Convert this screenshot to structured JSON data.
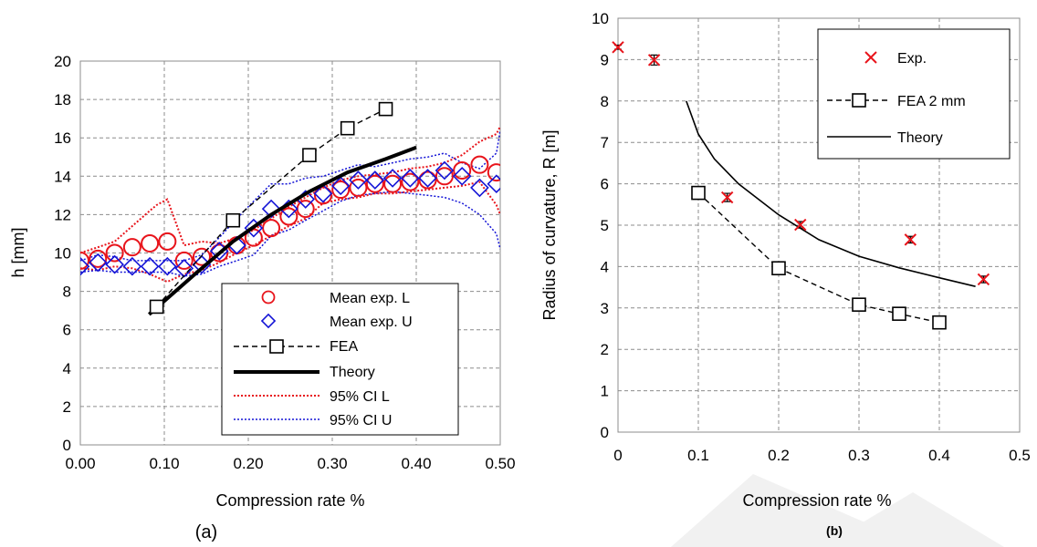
{
  "chart_data": [
    {
      "type": "line",
      "panel_label": "(a)",
      "xlabel": "Compression rate %",
      "ylabel": "h [mm]",
      "xlim": [
        0,
        0.55
      ],
      "ylim": [
        0,
        20
      ],
      "xticks": [
        "0.00",
        "0.10",
        "0.20",
        "0.30",
        "0.40",
        "0.50"
      ],
      "yticks": [
        "0",
        "2",
        "4",
        "6",
        "8",
        "10",
        "12",
        "14",
        "16",
        "18",
        "20"
      ],
      "grid": true,
      "legend_position": "lower-right",
      "series": [
        {
          "name": "Mean exp. L",
          "style": "markers",
          "marker": "circle",
          "color": "#e8141b",
          "x": [
            0.0,
            0.023,
            0.045,
            0.068,
            0.091,
            0.114,
            0.136,
            0.159,
            0.182,
            0.205,
            0.227,
            0.25,
            0.273,
            0.295,
            0.318,
            0.341,
            0.364,
            0.386,
            0.409,
            0.432,
            0.455,
            0.477,
            0.5,
            0.523,
            0.545
          ],
          "y": [
            9.6,
            9.7,
            10.0,
            10.3,
            10.5,
            10.6,
            9.6,
            9.8,
            10.0,
            10.4,
            10.8,
            11.3,
            11.9,
            12.3,
            13.0,
            13.3,
            13.4,
            13.6,
            13.6,
            13.7,
            13.8,
            14.0,
            14.3,
            14.6,
            14.2
          ]
        },
        {
          "name": "Mean exp. U",
          "style": "markers",
          "marker": "diamond",
          "color": "#1414d6",
          "x": [
            0.0,
            0.023,
            0.045,
            0.068,
            0.091,
            0.114,
            0.136,
            0.159,
            0.182,
            0.205,
            0.227,
            0.25,
            0.273,
            0.295,
            0.318,
            0.341,
            0.364,
            0.386,
            0.409,
            0.432,
            0.455,
            0.477,
            0.5,
            0.523,
            0.545
          ],
          "y": [
            9.3,
            9.5,
            9.4,
            9.3,
            9.3,
            9.3,
            9.2,
            9.4,
            10.1,
            10.4,
            11.3,
            12.3,
            12.3,
            12.8,
            13.1,
            13.5,
            13.8,
            13.8,
            13.9,
            13.9,
            13.9,
            14.3,
            14.0,
            13.4,
            13.6
          ]
        },
        {
          "name": "FEA",
          "style": "dashed-markers",
          "marker": "square",
          "color": "#000000",
          "x": [
            0.1,
            0.2,
            0.3,
            0.35,
            0.4
          ],
          "y": [
            7.2,
            11.7,
            15.1,
            16.5,
            17.5
          ]
        },
        {
          "name": "Theory",
          "style": "thick-line",
          "color": "#000000",
          "x": [
            0.09,
            0.15,
            0.2,
            0.25,
            0.3,
            0.35,
            0.4,
            0.44
          ],
          "y": [
            6.8,
            8.9,
            10.6,
            12.0,
            13.2,
            14.2,
            14.9,
            15.5
          ]
        },
        {
          "name": "95% CI L",
          "style": "dotted",
          "color": "#e8141b",
          "lines": [
            {
              "x": [
                0.0,
                0.023,
                0.045,
                0.068,
                0.091,
                0.1,
                0.114,
                0.136,
                0.159,
                0.182,
                0.205,
                0.227,
                0.25,
                0.273,
                0.295,
                0.318,
                0.341,
                0.364,
                0.386,
                0.409,
                0.432,
                0.455,
                0.477,
                0.5,
                0.523,
                0.545,
                0.55
              ],
              "y": [
                10.0,
                10.3,
                10.6,
                11.4,
                12.2,
                12.5,
                12.8,
                10.4,
                10.6,
                10.5,
                10.8,
                11.2,
                11.8,
                12.4,
                12.9,
                13.4,
                13.8,
                14.0,
                14.1,
                14.2,
                14.4,
                14.5,
                14.7,
                15.1,
                15.8,
                16.2,
                16.6
              ]
            },
            {
              "x": [
                0.0,
                0.023,
                0.045,
                0.068,
                0.091,
                0.114,
                0.136,
                0.159,
                0.182,
                0.205,
                0.227,
                0.25,
                0.273,
                0.295,
                0.318,
                0.341,
                0.364,
                0.386,
                0.409,
                0.432,
                0.455,
                0.477,
                0.5,
                0.523,
                0.545,
                0.55
              ],
              "y": [
                9.2,
                9.1,
                9.3,
                9.2,
                8.9,
                8.5,
                8.9,
                9.1,
                9.5,
                10.0,
                10.4,
                10.9,
                11.4,
                11.8,
                12.6,
                12.8,
                12.9,
                13.1,
                13.1,
                13.2,
                13.3,
                13.4,
                13.5,
                13.7,
                12.5,
                12.0
              ]
            }
          ]
        },
        {
          "name": "95% CI U",
          "style": "dotted",
          "color": "#1414d6",
          "lines": [
            {
              "x": [
                0.0,
                0.023,
                0.045,
                0.068,
                0.091,
                0.114,
                0.136,
                0.159,
                0.182,
                0.205,
                0.227,
                0.25,
                0.273,
                0.295,
                0.318,
                0.341,
                0.364,
                0.386,
                0.409,
                0.432,
                0.455,
                0.477,
                0.5,
                0.523,
                0.545,
                0.55
              ],
              "y": [
                9.6,
                9.9,
                9.8,
                9.6,
                9.6,
                9.6,
                9.6,
                9.9,
                10.8,
                11.8,
                12.7,
                13.6,
                13.6,
                13.9,
                14.0,
                14.3,
                14.6,
                14.5,
                14.7,
                14.9,
                15.0,
                15.2,
                14.7,
                14.4,
                15.2,
                16.4
              ]
            },
            {
              "x": [
                0.0,
                0.023,
                0.045,
                0.068,
                0.091,
                0.114,
                0.136,
                0.159,
                0.182,
                0.205,
                0.227,
                0.25,
                0.273,
                0.295,
                0.318,
                0.341,
                0.364,
                0.386,
                0.409,
                0.432,
                0.455,
                0.477,
                0.5,
                0.523,
                0.545,
                0.55
              ],
              "y": [
                9.0,
                9.1,
                9.0,
                9.0,
                9.0,
                9.0,
                8.8,
                8.9,
                9.3,
                9.6,
                9.9,
                10.9,
                11.2,
                11.7,
                12.2,
                12.7,
                13.0,
                13.1,
                13.2,
                13.1,
                13.0,
                12.9,
                12.6,
                12.0,
                11.0,
                10.2
              ]
            }
          ]
        }
      ]
    },
    {
      "type": "scatter",
      "panel_label": "(b)",
      "xlabel": "Compression rate %",
      "ylabel": "Radius of curvature, R [m]",
      "xlim": [
        0,
        0.5
      ],
      "ylim": [
        0,
        10
      ],
      "xticks": [
        "0",
        "0.1",
        "0.2",
        "0.3",
        "0.4",
        "0.5"
      ],
      "yticks": [
        "0",
        "1",
        "2",
        "3",
        "4",
        "5",
        "6",
        "7",
        "8",
        "9",
        "10"
      ],
      "grid": true,
      "legend_position": "top-right",
      "series": [
        {
          "name": "Exp.",
          "style": "markers",
          "marker": "x",
          "color": "#e8141b",
          "x": [
            0.0,
            0.045,
            0.136,
            0.227,
            0.364,
            0.455
          ],
          "y": [
            9.3,
            8.99,
            5.67,
            5.01,
            4.65,
            3.69
          ],
          "error": [
            0.05,
            0.12,
            0.1,
            0.08,
            0.08,
            0.08
          ]
        },
        {
          "name": "FEA 2 mm",
          "style": "dashed-markers",
          "marker": "square",
          "color": "#000000",
          "x": [
            0.1,
            0.2,
            0.3,
            0.35,
            0.4
          ],
          "y": [
            5.78,
            3.96,
            3.08,
            2.86,
            2.65
          ]
        },
        {
          "name": "Theory",
          "style": "line",
          "color": "#000000",
          "x": [
            0.085,
            0.1,
            0.12,
            0.15,
            0.2,
            0.25,
            0.3,
            0.35,
            0.4,
            0.445
          ],
          "y": [
            8.0,
            7.2,
            6.6,
            6.0,
            5.25,
            4.65,
            4.25,
            3.97,
            3.73,
            3.52
          ]
        }
      ]
    }
  ]
}
